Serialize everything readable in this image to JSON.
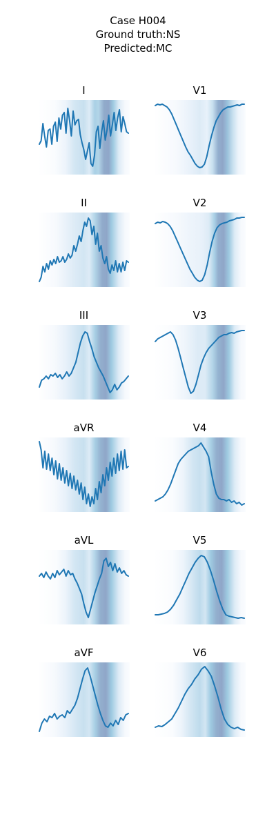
{
  "header": {
    "case_line": "Case H004",
    "ground_truth_line": "Ground truth:NS",
    "predicted_line": "Predicted:MC"
  },
  "colors": {
    "trace": "#1f77b4",
    "attention_light": "#e8f1fa",
    "attention_mid": "#9ecae1",
    "attention_dark": "#8fa6c8"
  },
  "chart_data": {
    "type": "line",
    "layout": "6x2 grid of small ECG lead panels with attention heatmap background",
    "x_range": [
      0,
      1
    ],
    "y_range": [
      0,
      1
    ],
    "axes_visible": false,
    "grid": false,
    "panels": [
      {
        "lead": "I",
        "attention": [
          [
            0.0,
            0.0
          ],
          [
            0.18,
            0.05
          ],
          [
            0.3,
            0.2
          ],
          [
            0.4,
            0.35
          ],
          [
            0.5,
            0.4
          ],
          [
            0.56,
            0.3
          ],
          [
            0.62,
            0.55
          ],
          [
            0.66,
            0.5
          ],
          [
            0.72,
            0.95
          ],
          [
            0.77,
            1.0
          ],
          [
            0.82,
            0.6
          ],
          [
            0.88,
            0.3
          ],
          [
            0.95,
            0.1
          ],
          [
            1.0,
            0.05
          ]
        ],
        "values": [
          0.4,
          0.45,
          0.7,
          0.52,
          0.36,
          0.6,
          0.62,
          0.4,
          0.66,
          0.72,
          0.44,
          0.78,
          0.62,
          0.82,
          0.86,
          0.56,
          0.92,
          0.74,
          0.52,
          0.88,
          0.68,
          0.74,
          0.76,
          0.54,
          0.42,
          0.32,
          0.18,
          0.3,
          0.42,
          0.12,
          0.08,
          0.24,
          0.58,
          0.66,
          0.34,
          0.58,
          0.74,
          0.46,
          0.6,
          0.82,
          0.52,
          0.68,
          0.86,
          0.6,
          0.78,
          0.9,
          0.58,
          0.8,
          0.7,
          0.58,
          0.56
        ]
      },
      {
        "lead": "V1",
        "attention": [
          [
            0.0,
            0.0
          ],
          [
            0.25,
            0.1
          ],
          [
            0.4,
            0.25
          ],
          [
            0.5,
            0.3
          ],
          [
            0.58,
            0.25
          ],
          [
            0.64,
            0.4
          ],
          [
            0.7,
            0.9
          ],
          [
            0.75,
            1.0
          ],
          [
            0.8,
            0.7
          ],
          [
            0.86,
            0.4
          ],
          [
            0.92,
            0.2
          ],
          [
            1.0,
            0.05
          ]
        ],
        "values": [
          0.96,
          0.98,
          0.97,
          0.98,
          0.96,
          0.94,
          0.9,
          0.84,
          0.76,
          0.68,
          0.6,
          0.52,
          0.44,
          0.36,
          0.29,
          0.24,
          0.18,
          0.12,
          0.08,
          0.06,
          0.07,
          0.11,
          0.22,
          0.38,
          0.52,
          0.64,
          0.74,
          0.8,
          0.86,
          0.9,
          0.92,
          0.94,
          0.94,
          0.95,
          0.96,
          0.97,
          0.96,
          0.98,
          0.98
        ]
      },
      {
        "lead": "II",
        "attention": [
          [
            0.0,
            0.0
          ],
          [
            0.2,
            0.1
          ],
          [
            0.4,
            0.3
          ],
          [
            0.5,
            0.35
          ],
          [
            0.56,
            0.3
          ],
          [
            0.62,
            0.5
          ],
          [
            0.7,
            0.95
          ],
          [
            0.75,
            1.0
          ],
          [
            0.8,
            0.6
          ],
          [
            0.88,
            0.3
          ],
          [
            0.95,
            0.1
          ],
          [
            1.0,
            0.05
          ]
        ],
        "values": [
          0.04,
          0.1,
          0.26,
          0.18,
          0.3,
          0.22,
          0.34,
          0.28,
          0.36,
          0.3,
          0.4,
          0.32,
          0.34,
          0.4,
          0.32,
          0.36,
          0.44,
          0.38,
          0.42,
          0.56,
          0.48,
          0.58,
          0.7,
          0.62,
          0.78,
          0.9,
          0.84,
          0.96,
          0.92,
          0.72,
          0.84,
          0.58,
          0.74,
          0.48,
          0.56,
          0.38,
          0.3,
          0.4,
          0.22,
          0.16,
          0.28,
          0.2,
          0.34,
          0.18,
          0.3,
          0.18,
          0.32,
          0.2,
          0.34,
          0.32
        ]
      },
      {
        "lead": "V2",
        "attention": [
          [
            0.0,
            0.0
          ],
          [
            0.25,
            0.1
          ],
          [
            0.4,
            0.2
          ],
          [
            0.52,
            0.25
          ],
          [
            0.6,
            0.3
          ],
          [
            0.66,
            0.55
          ],
          [
            0.7,
            0.9
          ],
          [
            0.76,
            1.0
          ],
          [
            0.82,
            0.6
          ],
          [
            0.88,
            0.3
          ],
          [
            0.95,
            0.1
          ],
          [
            1.0,
            0.05
          ]
        ],
        "values": [
          0.88,
          0.9,
          0.89,
          0.91,
          0.9,
          0.88,
          0.84,
          0.78,
          0.7,
          0.62,
          0.54,
          0.46,
          0.38,
          0.3,
          0.22,
          0.16,
          0.1,
          0.06,
          0.04,
          0.06,
          0.14,
          0.28,
          0.46,
          0.62,
          0.74,
          0.82,
          0.86,
          0.88,
          0.89,
          0.9,
          0.92,
          0.93,
          0.94,
          0.96,
          0.96,
          0.97,
          0.97
        ]
      },
      {
        "lead": "III",
        "attention": [
          [
            0.0,
            0.0
          ],
          [
            0.18,
            0.1
          ],
          [
            0.3,
            0.25
          ],
          [
            0.42,
            0.35
          ],
          [
            0.5,
            0.4
          ],
          [
            0.56,
            0.3
          ],
          [
            0.62,
            0.55
          ],
          [
            0.68,
            0.9
          ],
          [
            0.74,
            1.0
          ],
          [
            0.8,
            0.6
          ],
          [
            0.88,
            0.3
          ],
          [
            0.95,
            0.1
          ],
          [
            1.0,
            0.05
          ]
        ],
        "values": [
          0.14,
          0.24,
          0.26,
          0.3,
          0.26,
          0.32,
          0.3,
          0.34,
          0.28,
          0.32,
          0.26,
          0.3,
          0.36,
          0.3,
          0.34,
          0.42,
          0.5,
          0.64,
          0.78,
          0.88,
          0.94,
          0.92,
          0.8,
          0.7,
          0.58,
          0.5,
          0.42,
          0.36,
          0.3,
          0.22,
          0.14,
          0.06,
          0.1,
          0.18,
          0.1,
          0.14,
          0.2,
          0.22,
          0.26,
          0.3
        ]
      },
      {
        "lead": "V3",
        "attention": [
          [
            0.0,
            0.0
          ],
          [
            0.2,
            0.05
          ],
          [
            0.35,
            0.2
          ],
          [
            0.48,
            0.3
          ],
          [
            0.56,
            0.3
          ],
          [
            0.64,
            0.5
          ],
          [
            0.7,
            0.85
          ],
          [
            0.76,
            1.0
          ],
          [
            0.82,
            0.6
          ],
          [
            0.88,
            0.3
          ],
          [
            0.95,
            0.1
          ],
          [
            1.0,
            0.05
          ]
        ],
        "values": [
          0.8,
          0.84,
          0.86,
          0.88,
          0.9,
          0.92,
          0.94,
          0.9,
          0.82,
          0.7,
          0.56,
          0.42,
          0.28,
          0.14,
          0.05,
          0.08,
          0.18,
          0.32,
          0.46,
          0.56,
          0.64,
          0.7,
          0.74,
          0.78,
          0.82,
          0.86,
          0.88,
          0.9,
          0.9,
          0.92,
          0.93,
          0.92,
          0.94,
          0.95,
          0.96,
          0.96
        ]
      },
      {
        "lead": "aVR",
        "attention": [
          [
            0.0,
            0.0
          ],
          [
            0.18,
            0.1
          ],
          [
            0.3,
            0.25
          ],
          [
            0.4,
            0.35
          ],
          [
            0.5,
            0.4
          ],
          [
            0.56,
            0.3
          ],
          [
            0.62,
            0.55
          ],
          [
            0.68,
            0.85
          ],
          [
            0.74,
            1.0
          ],
          [
            0.8,
            0.6
          ],
          [
            0.88,
            0.3
          ],
          [
            0.95,
            0.1
          ],
          [
            1.0,
            0.05
          ]
        ],
        "values": [
          0.98,
          0.86,
          0.6,
          0.84,
          0.58,
          0.8,
          0.56,
          0.74,
          0.5,
          0.7,
          0.44,
          0.66,
          0.42,
          0.6,
          0.38,
          0.56,
          0.34,
          0.52,
          0.3,
          0.48,
          0.28,
          0.42,
          0.22,
          0.38,
          0.14,
          0.32,
          0.08,
          0.22,
          0.04,
          0.18,
          0.08,
          0.3,
          0.14,
          0.4,
          0.24,
          0.5,
          0.34,
          0.6,
          0.42,
          0.68,
          0.48,
          0.74,
          0.52,
          0.8,
          0.56,
          0.84,
          0.58,
          0.86,
          0.6,
          0.62
        ]
      },
      {
        "lead": "V4",
        "attention": [
          [
            0.0,
            0.0
          ],
          [
            0.2,
            0.05
          ],
          [
            0.32,
            0.2
          ],
          [
            0.42,
            0.35
          ],
          [
            0.5,
            0.4
          ],
          [
            0.56,
            0.35
          ],
          [
            0.62,
            0.55
          ],
          [
            0.68,
            0.9
          ],
          [
            0.74,
            1.0
          ],
          [
            0.8,
            0.6
          ],
          [
            0.88,
            0.3
          ],
          [
            0.95,
            0.1
          ],
          [
            1.0,
            0.05
          ]
        ],
        "values": [
          0.12,
          0.14,
          0.16,
          0.18,
          0.22,
          0.28,
          0.36,
          0.46,
          0.56,
          0.66,
          0.72,
          0.76,
          0.8,
          0.84,
          0.86,
          0.88,
          0.9,
          0.92,
          0.96,
          0.9,
          0.84,
          0.76,
          0.54,
          0.36,
          0.22,
          0.16,
          0.14,
          0.14,
          0.12,
          0.14,
          0.1,
          0.12,
          0.08,
          0.1,
          0.06,
          0.08
        ]
      },
      {
        "lead": "aVL",
        "attention": [
          [
            0.0,
            0.0
          ],
          [
            0.2,
            0.05
          ],
          [
            0.3,
            0.2
          ],
          [
            0.4,
            0.35
          ],
          [
            0.5,
            0.4
          ],
          [
            0.56,
            0.3
          ],
          [
            0.62,
            0.5
          ],
          [
            0.68,
            0.9
          ],
          [
            0.74,
            1.0
          ],
          [
            0.8,
            0.6
          ],
          [
            0.88,
            0.3
          ],
          [
            0.95,
            0.1
          ],
          [
            1.0,
            0.05
          ]
        ],
        "values": [
          0.66,
          0.7,
          0.64,
          0.72,
          0.66,
          0.62,
          0.7,
          0.64,
          0.74,
          0.68,
          0.72,
          0.76,
          0.66,
          0.74,
          0.68,
          0.7,
          0.62,
          0.56,
          0.48,
          0.4,
          0.26,
          0.14,
          0.06,
          0.18,
          0.3,
          0.42,
          0.52,
          0.62,
          0.7,
          0.88,
          0.92,
          0.8,
          0.86,
          0.74,
          0.84,
          0.72,
          0.78,
          0.7,
          0.74,
          0.68,
          0.66
        ]
      },
      {
        "lead": "V5",
        "attention": [
          [
            0.0,
            0.0
          ],
          [
            0.2,
            0.05
          ],
          [
            0.32,
            0.2
          ],
          [
            0.42,
            0.35
          ],
          [
            0.5,
            0.45
          ],
          [
            0.56,
            0.35
          ],
          [
            0.62,
            0.6
          ],
          [
            0.68,
            0.9
          ],
          [
            0.74,
            1.0
          ],
          [
            0.8,
            0.6
          ],
          [
            0.88,
            0.3
          ],
          [
            0.95,
            0.1
          ],
          [
            1.0,
            0.05
          ]
        ],
        "values": [
          0.1,
          0.1,
          0.11,
          0.12,
          0.14,
          0.18,
          0.24,
          0.32,
          0.4,
          0.5,
          0.6,
          0.7,
          0.78,
          0.86,
          0.92,
          0.96,
          0.94,
          0.86,
          0.74,
          0.6,
          0.44,
          0.3,
          0.18,
          0.1,
          0.08,
          0.07,
          0.06,
          0.05,
          0.06,
          0.05
        ]
      },
      {
        "lead": "aVF",
        "attention": [
          [
            0.0,
            0.0
          ],
          [
            0.18,
            0.1
          ],
          [
            0.3,
            0.25
          ],
          [
            0.42,
            0.35
          ],
          [
            0.5,
            0.4
          ],
          [
            0.56,
            0.35
          ],
          [
            0.62,
            0.55
          ],
          [
            0.68,
            0.9
          ],
          [
            0.74,
            1.0
          ],
          [
            0.8,
            0.6
          ],
          [
            0.88,
            0.3
          ],
          [
            0.95,
            0.1
          ],
          [
            1.0,
            0.05
          ]
        ],
        "values": [
          0.04,
          0.16,
          0.22,
          0.18,
          0.26,
          0.24,
          0.3,
          0.22,
          0.26,
          0.28,
          0.24,
          0.34,
          0.3,
          0.36,
          0.42,
          0.52,
          0.66,
          0.8,
          0.92,
          0.96,
          0.84,
          0.7,
          0.56,
          0.42,
          0.3,
          0.2,
          0.12,
          0.1,
          0.16,
          0.12,
          0.2,
          0.14,
          0.24,
          0.2,
          0.28,
          0.3
        ]
      },
      {
        "lead": "V6",
        "attention": [
          [
            0.0,
            0.0
          ],
          [
            0.2,
            0.05
          ],
          [
            0.3,
            0.2
          ],
          [
            0.4,
            0.35
          ],
          [
            0.5,
            0.45
          ],
          [
            0.56,
            0.35
          ],
          [
            0.62,
            0.6
          ],
          [
            0.68,
            0.9
          ],
          [
            0.74,
            1.0
          ],
          [
            0.8,
            0.6
          ],
          [
            0.88,
            0.3
          ],
          [
            0.95,
            0.1
          ],
          [
            1.0,
            0.05
          ]
        ],
        "values": [
          0.1,
          0.12,
          0.11,
          0.14,
          0.18,
          0.22,
          0.3,
          0.38,
          0.48,
          0.58,
          0.66,
          0.72,
          0.8,
          0.86,
          0.94,
          0.98,
          0.92,
          0.84,
          0.7,
          0.54,
          0.36,
          0.22,
          0.14,
          0.1,
          0.08,
          0.1,
          0.07,
          0.06
        ]
      }
    ]
  }
}
